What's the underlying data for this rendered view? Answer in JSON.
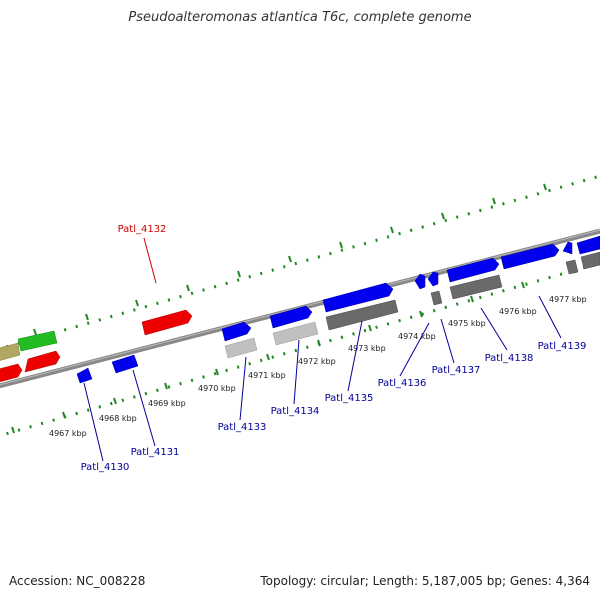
{
  "title": "Pseudoalteromonas atlantica T6c, complete genome",
  "footer": {
    "accession": "Accession: NC_008228",
    "summary": "Topology: circular; Length: 5,187,005 bp; Genes: 4,364"
  },
  "ticks": [
    "4967 kbp",
    "4968 kbp",
    "4969 kbp",
    "4970 kbp",
    "4971 kbp",
    "4972 kbp",
    "4973 kbp",
    "4974 kbp",
    "4975 kbp",
    "4976 kbp",
    "4977 kbp"
  ],
  "genes": [
    "Patl_4130",
    "Patl_4131",
    "Patl_4132",
    "Patl_4133",
    "Patl_4134",
    "Patl_4135",
    "Patl_4136",
    "Patl_4137",
    "Patl_4138",
    "Patl_4139"
  ],
  "colors": {
    "forward_gene": "#0000ee",
    "highlight_gene": "#ee0000",
    "green_gene": "#22bb22",
    "olive_gene": "#b0a860",
    "light_gray_gene": "#c0c0c0",
    "dark_gray_gene": "#6a6a6a",
    "backbone": "#888888",
    "tick": "#228822",
    "label_blue": "#000099",
    "label_red": "#cc0000"
  }
}
